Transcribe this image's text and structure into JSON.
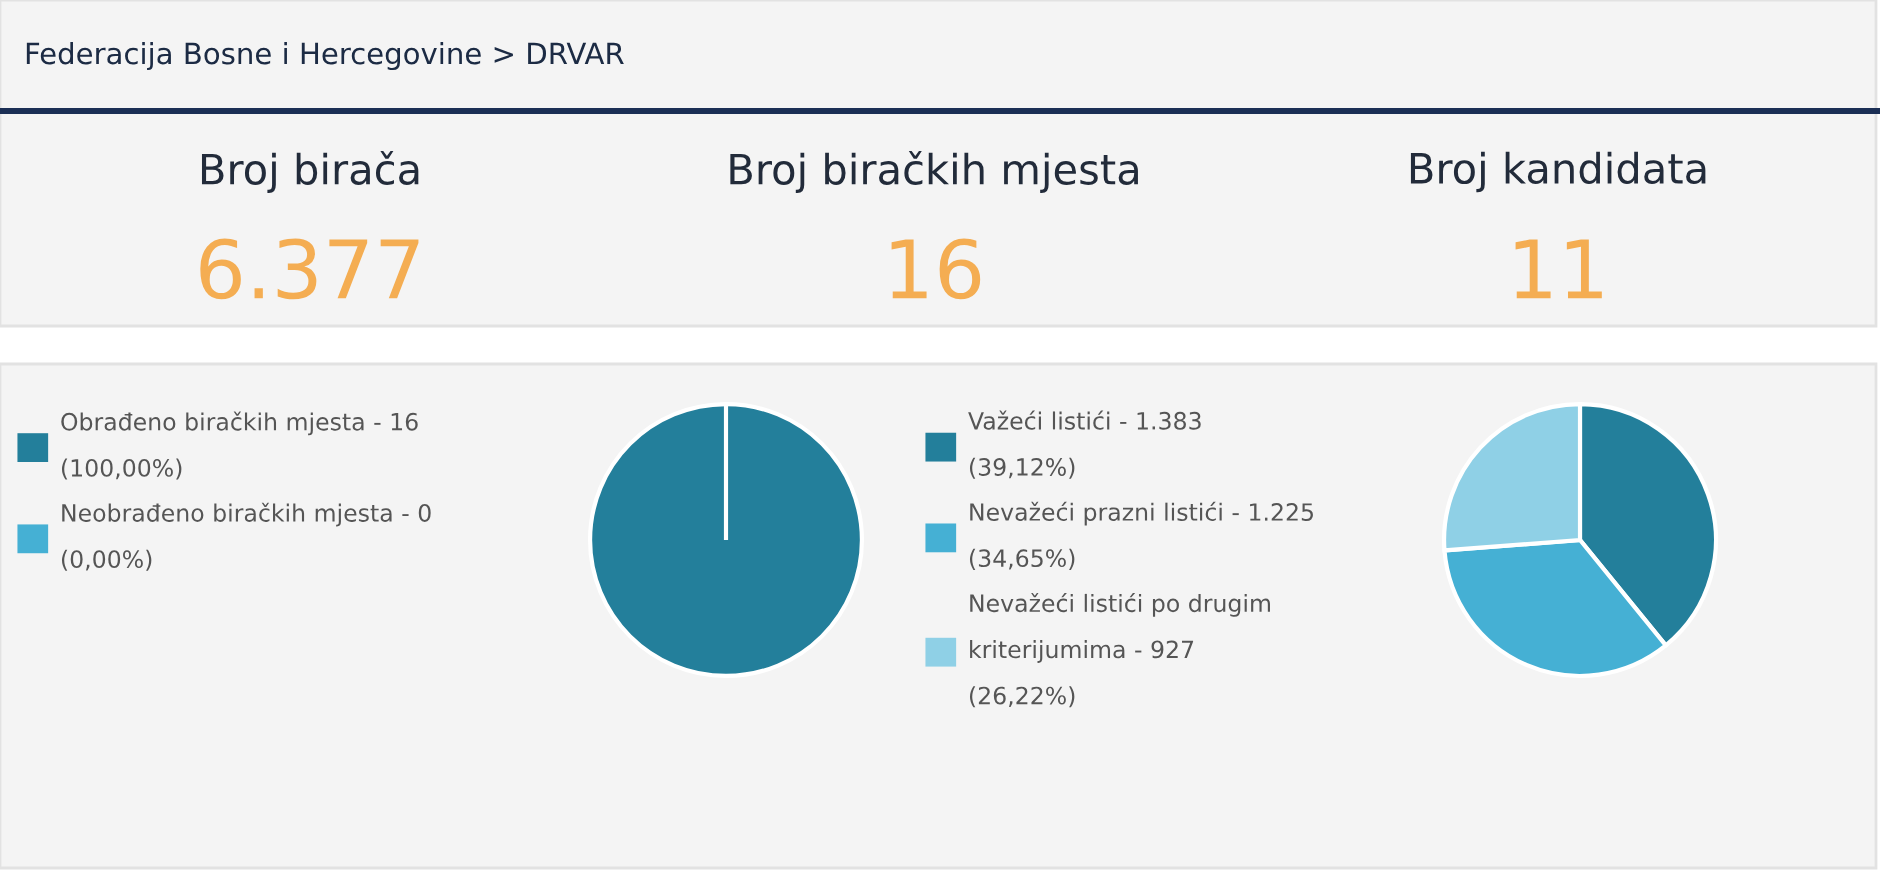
{
  "chart_data": [
    {
      "type": "other",
      "title": "Federacija Bosne i Hercegovine > DRVAR",
      "categories": [
        "Broj birača",
        "Broj biračkih mjesta",
        "Broj kandidata"
      ],
      "value_labels": [
        "6.377",
        "16",
        "11"
      ],
      "colors": [
        "#f4ad52",
        "#f4ad52",
        "#f4ad52"
      ]
    },
    {
      "type": "pie",
      "categories": [
        "Obrađeno biračkih mjesta - 16 (100,00%)",
        "Neobrađeno biračkih mjesta - 0 (0,00%)"
      ],
      "values": [
        100.0,
        0.0
      ],
      "colors": [
        "#237f9b",
        "#45b0d4"
      ],
      "legend": "left"
    },
    {
      "type": "pie",
      "categories": [
        "Važeći listići - 1.383 (39,12%)",
        "Nevažeći prazni listići - 1.225 (34,65%)",
        "Nevažeći listići po drugim kriterijumima - 927 (26,22%)"
      ],
      "values": [
        39.12,
        34.65,
        26.22
      ],
      "colors": [
        "#237f9b",
        "#45b0d4",
        "#8fd0e6"
      ],
      "legend": "left"
    }
  ]
}
